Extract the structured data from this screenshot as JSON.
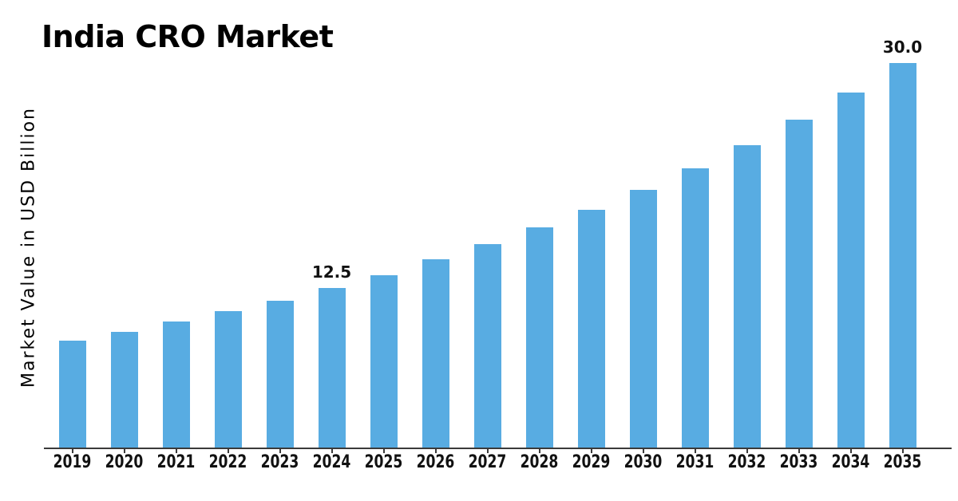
{
  "title": "India CRO Market",
  "colors": {
    "bar": "#58ACE2",
    "axis": "#3a3a3a",
    "text": "#111111"
  },
  "chart_data": {
    "type": "bar",
    "title": "India CRO Market",
    "xlabel": "",
    "ylabel": "Market Value in USD Billion",
    "categories": [
      "2019",
      "2020",
      "2021",
      "2022",
      "2023",
      "2024",
      "2025",
      "2026",
      "2027",
      "2028",
      "2029",
      "2030",
      "2031",
      "2032",
      "2033",
      "2034",
      "2035"
    ],
    "values": [
      8.4,
      9.1,
      9.9,
      10.7,
      11.5,
      12.5,
      13.5,
      14.7,
      15.9,
      17.2,
      18.6,
      20.1,
      21.8,
      23.6,
      25.6,
      27.7,
      30.0
    ],
    "point_labels": [
      "",
      "",
      "",
      "",
      "",
      "12.5",
      "",
      "",
      "",
      "",
      "",
      "",
      "",
      "",
      "",
      "",
      "30.0"
    ],
    "ylim": [
      0,
      30
    ],
    "grid": false,
    "legend": null,
    "bar_color": "#58ACE2",
    "axis_color": "#3a3a3a"
  }
}
